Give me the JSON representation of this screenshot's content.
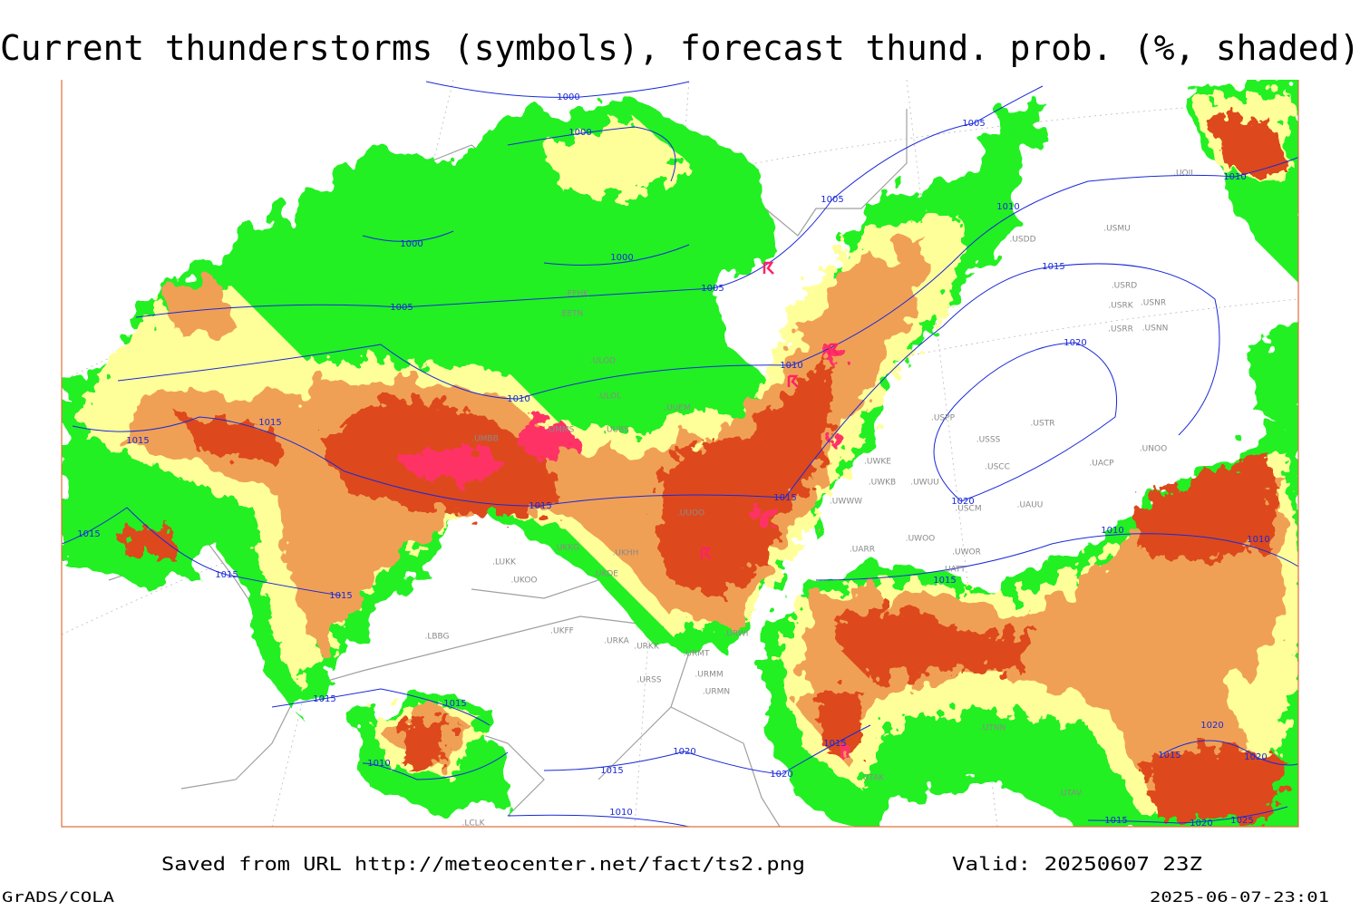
{
  "header": {
    "title": "Current thunderstorms (symbols), forecast thund. prob. (%, shaded)"
  },
  "footer": {
    "saved": "Saved from URL http://meteocenter.net/fact/ts2.png",
    "valid": "Valid: 20250607 23Z",
    "software": "GrADS/COLA",
    "timestamp": "2025-06-07-23:01"
  },
  "isobar_labels": [
    "1000",
    "1000",
    "1000",
    "1000",
    "1005",
    "1005",
    "1005",
    "1005",
    "1010",
    "1010",
    "1010",
    "1010",
    "1015",
    "1015",
    "1015",
    "1015",
    "1015",
    "1015",
    "1015",
    "1015",
    "1015",
    "1020",
    "1020",
    "1010",
    "1010",
    "1015",
    "1015",
    "1010",
    "1015",
    "1020",
    "1015",
    "1020",
    "1010",
    "1015",
    "1020",
    "1025",
    "1020",
    "1015",
    "1020"
  ],
  "station_labels": [
    ".UOII",
    ".USMU",
    ".USDD",
    ".USRD",
    ".USRK",
    ".USNR",
    ".USRR",
    ".USNN",
    ".USPP",
    ".USSS",
    ".USTR",
    ".USCC",
    ".UACP",
    ".UNOO",
    ".UWKE",
    ".UWKB",
    ".UWUU",
    ".USCM",
    ".UAUU",
    ".UWWW",
    ".UWOO",
    ".UWOR",
    ".UATT",
    ".UARR",
    ".ULOD",
    ".ULOL",
    ".UUEM",
    ".UUBS",
    ".EFHK",
    ".EETN",
    ".UUOO",
    ".UKHH",
    ".UKKG",
    ".LUKK",
    ".UKOO",
    ".UKDE",
    ".UKFF",
    ".URKA",
    ".URKK",
    ".URMT",
    ".URWI",
    ".URSS",
    ".URMM",
    ".URMN",
    ".UTAK",
    ".UTNN",
    ".UTAV",
    ".LBBG",
    ".LCLK",
    ".UMMS",
    ".UMBB"
  ]
}
